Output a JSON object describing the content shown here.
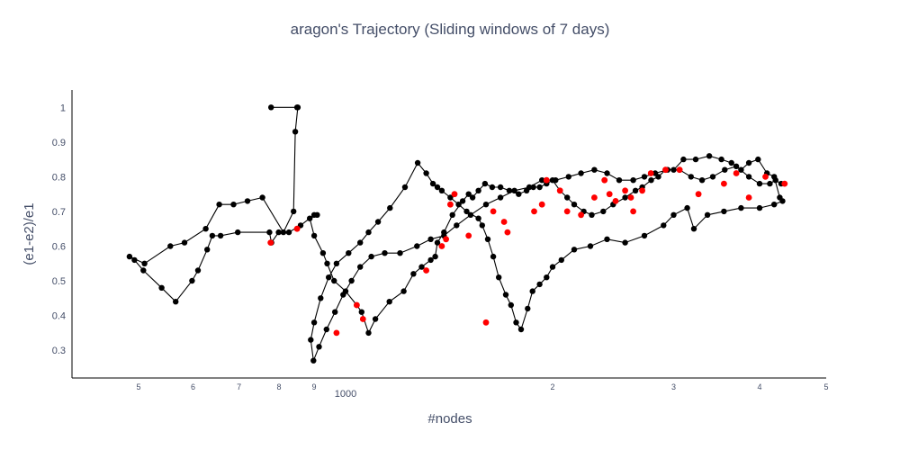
{
  "chart_data": {
    "type": "scatter",
    "mode": "lines+markers",
    "title": "aragon's Trajectory (Sliding windows of 7 days)",
    "xlabel": "#nodes",
    "ylabel": "(e1-e2)/e1",
    "x_scale": "log",
    "xlim": [
      400,
      5000
    ],
    "ylim": [
      0.22,
      1.05
    ],
    "x_major_ticks": [
      {
        "value": 1000,
        "label": "1000"
      }
    ],
    "x_minor_ticks": [
      {
        "value": 500,
        "label": "5"
      },
      {
        "value": 600,
        "label": "6"
      },
      {
        "value": 700,
        "label": "7"
      },
      {
        "value": 800,
        "label": "8"
      },
      {
        "value": 900,
        "label": "9"
      },
      {
        "value": 2000,
        "label": "2"
      },
      {
        "value": 3000,
        "label": "3"
      },
      {
        "value": 4000,
        "label": "4"
      },
      {
        "value": 5000,
        "label": "5"
      }
    ],
    "y_ticks": [
      0.3,
      0.4,
      0.5,
      0.6,
      0.7,
      0.8,
      0.9,
      1
    ],
    "y_tick_labels": [
      "0.3",
      "0.4",
      "0.5",
      "0.6",
      "0.7",
      "0.8",
      "0.9",
      "1"
    ],
    "grid": false,
    "colors": {
      "line": "#000000",
      "marker": "#000000",
      "highlight": "#ff0000",
      "text": "#444e68",
      "axis": "#000000"
    },
    "series": [
      {
        "line": "#000000",
        "points": [
          [
            779,
            1.0
          ],
          [
            850,
            1.0
          ],
          [
            852,
            1.0
          ],
          [
            845,
            0.93
          ],
          [
            840,
            0.7
          ],
          [
            812,
            0.64
          ],
          [
            757,
            0.74
          ],
          [
            720,
            0.73
          ],
          [
            687,
            0.72
          ],
          [
            655,
            0.72
          ],
          [
            626,
            0.65
          ],
          [
            583,
            0.61
          ],
          [
            556,
            0.6
          ],
          [
            510,
            0.55
          ],
          [
            485,
            0.57
          ],
          [
            493,
            0.56
          ],
          [
            508,
            0.53
          ],
          [
            540,
            0.48
          ],
          [
            566,
            0.44
          ],
          [
            598,
            0.5
          ],
          [
            610,
            0.53
          ],
          [
            629,
            0.59
          ],
          [
            640,
            0.63
          ],
          [
            658,
            0.63
          ],
          [
            697,
            0.64
          ],
          [
            775,
            0.64
          ],
          [
            780,
            0.61
          ],
          [
            799,
            0.64
          ],
          [
            827,
            0.64
          ],
          [
            860,
            0.66
          ],
          [
            900,
            0.69
          ],
          [
            909,
            0.69
          ],
          [
            887,
            0.68
          ],
          [
            900,
            0.63
          ],
          [
            927,
            0.58
          ],
          [
            940,
            0.55
          ],
          [
            962,
            0.5
          ],
          [
            1000,
            0.47
          ],
          [
            1038,
            0.43
          ],
          [
            1055,
            0.41
          ],
          [
            1080,
            0.35
          ],
          [
            1105,
            0.39
          ],
          [
            1158,
            0.44
          ],
          [
            1215,
            0.47
          ],
          [
            1255,
            0.52
          ],
          [
            1290,
            0.54
          ],
          [
            1330,
            0.56
          ],
          [
            1350,
            0.57
          ],
          [
            1360,
            0.61
          ],
          [
            1390,
            0.64
          ],
          [
            1430,
            0.69
          ],
          [
            1480,
            0.73
          ],
          [
            1510,
            0.75
          ],
          [
            1530,
            0.74
          ],
          [
            1560,
            0.76
          ],
          [
            1595,
            0.78
          ],
          [
            1634,
            0.77
          ],
          [
            1680,
            0.77
          ],
          [
            1730,
            0.76
          ],
          [
            1785,
            0.75
          ],
          [
            1833,
            0.76
          ],
          [
            1875,
            0.77
          ],
          [
            1915,
            0.77
          ],
          [
            1960,
            0.78
          ],
          [
            2000,
            0.79
          ],
          [
            2050,
            0.76
          ],
          [
            2100,
            0.74
          ],
          [
            2150,
            0.72
          ],
          [
            2220,
            0.7
          ],
          [
            2280,
            0.69
          ],
          [
            2370,
            0.7
          ],
          [
            2450,
            0.72
          ],
          [
            2550,
            0.74
          ],
          [
            2640,
            0.76
          ],
          [
            2700,
            0.77
          ],
          [
            2782,
            0.79
          ],
          [
            2850,
            0.8
          ],
          [
            2920,
            0.82
          ],
          [
            3000,
            0.82
          ],
          [
            3100,
            0.85
          ],
          [
            3230,
            0.85
          ],
          [
            3380,
            0.86
          ],
          [
            3520,
            0.85
          ],
          [
            3640,
            0.84
          ],
          [
            3760,
            0.82
          ],
          [
            3860,
            0.84
          ],
          [
            3980,
            0.85
          ],
          [
            4100,
            0.81
          ],
          [
            4200,
            0.8
          ],
          [
            4280,
            0.74
          ],
          [
            4320,
            0.73
          ],
          [
            4200,
            0.72
          ],
          [
            4000,
            0.71
          ],
          [
            3760,
            0.71
          ],
          [
            3550,
            0.7
          ],
          [
            3360,
            0.69
          ],
          [
            3210,
            0.65
          ],
          [
            3140,
            0.71
          ],
          [
            3000,
            0.69
          ],
          [
            2900,
            0.66
          ],
          [
            2720,
            0.63
          ],
          [
            2550,
            0.61
          ],
          [
            2400,
            0.62
          ],
          [
            2270,
            0.6
          ],
          [
            2150,
            0.59
          ],
          [
            2060,
            0.56
          ],
          [
            2000,
            0.54
          ],
          [
            1960,
            0.51
          ],
          [
            1915,
            0.49
          ],
          [
            1870,
            0.47
          ],
          [
            1840,
            0.42
          ],
          [
            1800,
            0.36
          ],
          [
            1770,
            0.38
          ],
          [
            1740,
            0.43
          ],
          [
            1710,
            0.46
          ],
          [
            1670,
            0.51
          ],
          [
            1640,
            0.57
          ],
          [
            1610,
            0.62
          ],
          [
            1580,
            0.66
          ],
          [
            1560,
            0.68
          ],
          [
            1500,
            0.7
          ],
          [
            1460,
            0.72
          ],
          [
            1420,
            0.74
          ],
          [
            1380,
            0.76
          ],
          [
            1360,
            0.77
          ],
          [
            1340,
            0.78
          ],
          [
            1310,
            0.81
          ],
          [
            1273,
            0.84
          ],
          [
            1220,
            0.77
          ],
          [
            1160,
            0.71
          ],
          [
            1115,
            0.67
          ],
          [
            1080,
            0.64
          ],
          [
            1050,
            0.61
          ],
          [
            1010,
            0.58
          ],
          [
            970,
            0.55
          ],
          [
            945,
            0.51
          ],
          [
            920,
            0.45
          ],
          [
            900,
            0.38
          ],
          [
            890,
            0.33
          ],
          [
            898,
            0.27
          ],
          [
            915,
            0.31
          ],
          [
            938,
            0.36
          ],
          [
            965,
            0.41
          ],
          [
            992,
            0.46
          ],
          [
            1020,
            0.5
          ],
          [
            1050,
            0.54
          ],
          [
            1090,
            0.57
          ],
          [
            1140,
            0.58
          ],
          [
            1200,
            0.58
          ],
          [
            1270,
            0.6
          ],
          [
            1330,
            0.62
          ],
          [
            1390,
            0.63
          ],
          [
            1450,
            0.66
          ],
          [
            1520,
            0.69
          ],
          [
            1600,
            0.72
          ],
          [
            1680,
            0.74
          ],
          [
            1760,
            0.76
          ],
          [
            1850,
            0.77
          ],
          [
            1930,
            0.79
          ],
          [
            2020,
            0.79
          ],
          [
            2110,
            0.8
          ],
          [
            2200,
            0.81
          ],
          [
            2300,
            0.82
          ],
          [
            2400,
            0.81
          ],
          [
            2500,
            0.79
          ],
          [
            2620,
            0.79
          ],
          [
            2720,
            0.8
          ],
          [
            2820,
            0.81
          ],
          [
            2940,
            0.82
          ],
          [
            3060,
            0.82
          ],
          [
            3180,
            0.8
          ],
          [
            3300,
            0.79
          ],
          [
            3420,
            0.8
          ],
          [
            3560,
            0.82
          ],
          [
            3700,
            0.83
          ],
          [
            3860,
            0.8
          ],
          [
            4000,
            0.78
          ],
          [
            4140,
            0.78
          ],
          [
            4220,
            0.79
          ],
          [
            4300,
            0.78
          ]
        ]
      }
    ],
    "highlight_points": [
      [
        778,
        0.61
      ],
      [
        850,
        0.65
      ],
      [
        970,
        0.35
      ],
      [
        1038,
        0.43
      ],
      [
        1060,
        0.39
      ],
      [
        1310,
        0.53
      ],
      [
        1380,
        0.6
      ],
      [
        1400,
        0.62
      ],
      [
        1420,
        0.72
      ],
      [
        1440,
        0.75
      ],
      [
        1510,
        0.63
      ],
      [
        1600,
        0.38
      ],
      [
        1640,
        0.7
      ],
      [
        1700,
        0.67
      ],
      [
        1720,
        0.64
      ],
      [
        1880,
        0.7
      ],
      [
        1930,
        0.72
      ],
      [
        1960,
        0.79
      ],
      [
        2050,
        0.76
      ],
      [
        2100,
        0.7
      ],
      [
        2200,
        0.69
      ],
      [
        2300,
        0.74
      ],
      [
        2380,
        0.79
      ],
      [
        2420,
        0.75
      ],
      [
        2470,
        0.73
      ],
      [
        2550,
        0.76
      ],
      [
        2600,
        0.74
      ],
      [
        2620,
        0.7
      ],
      [
        2700,
        0.76
      ],
      [
        2780,
        0.81
      ],
      [
        2920,
        0.82
      ],
      [
        3060,
        0.82
      ],
      [
        3260,
        0.75
      ],
      [
        3550,
        0.78
      ],
      [
        3700,
        0.81
      ],
      [
        3860,
        0.74
      ],
      [
        4080,
        0.8
      ],
      [
        4350,
        0.78
      ]
    ]
  }
}
